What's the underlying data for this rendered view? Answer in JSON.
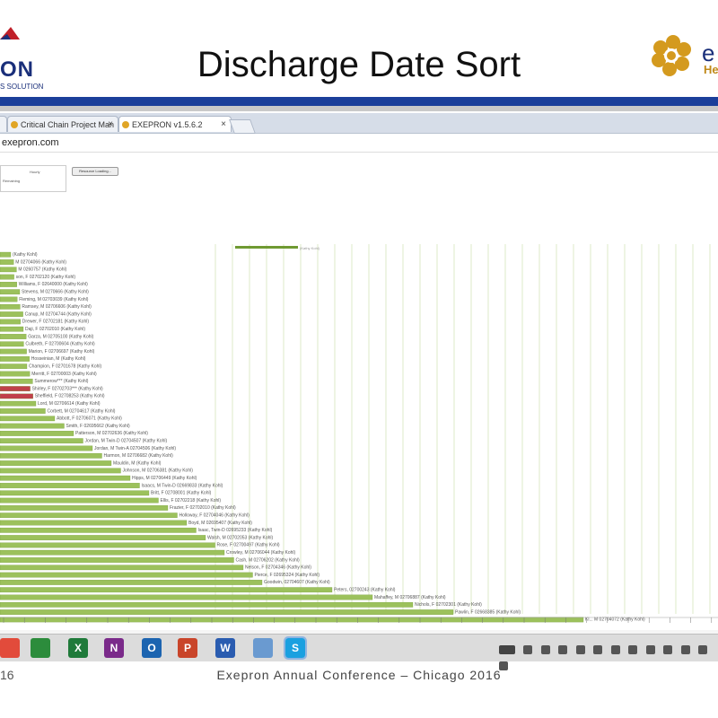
{
  "slide": {
    "title": "Discharge Date Sort",
    "logo_left_text": "ON",
    "logo_left_tagline": "S SOLUTION",
    "logo_right_text": "e",
    "logo_right_sub": "Hea",
    "footer_page": "16",
    "footer": "Exepron Annual Conference – Chicago 2016"
  },
  "browser": {
    "tabs": [
      {
        "label": "Critical Chain Project Man",
        "close": "×"
      },
      {
        "label": "EXEPRON v1.5.6.2",
        "close": "×"
      }
    ],
    "url": "exepron.com"
  },
  "app": {
    "option_label": "Hourly",
    "remaining_label": "Remaining",
    "resource_button": "Resource Loading..."
  },
  "gantt": {
    "rows": [
      {
        "label": "(Kathy Kohl)"
      },
      {
        "label": "M 02704066 (Kathy Kohl)"
      },
      {
        "label": "M 0260757 (Kathy Kohl)"
      },
      {
        "label": "son, F 02702120 (Kathy Kohl)"
      },
      {
        "label": "Williams, F 02640000 (Kathy Kohl)"
      },
      {
        "label": "Stevens, M 0270666 (Kathy Kohl)"
      },
      {
        "label": "Fleming, M 02703039 (Kathy Kohl)"
      },
      {
        "label": "Ramsey, M 02706606 (Kathy Kohl)"
      },
      {
        "label": "Canup, M 02704744 (Kathy Kohl)"
      },
      {
        "label": "Drewer, F 02702181 (Kathy Kohl)"
      },
      {
        "label": "Daji, F 02702010 (Kathy Kohl)"
      },
      {
        "label": "Garza, M 02705100 (Kathy Kohl)"
      },
      {
        "label": "Culbreth, F 02700604 (Kathy Kohl)"
      },
      {
        "label": "Marion, F 02706697 (Kathy Kohl)"
      },
      {
        "label": "Hosseinian, M (Kathy Kohl)"
      },
      {
        "label": "Champion, F 02701678 (Kathy Kohl)"
      },
      {
        "label": "Merritt, F 02700003 (Kathy Kohl)"
      },
      {
        "label": "Summerow*** (Kathy Kohl)"
      },
      {
        "label": "Shirley, F 02702703*** (Kathy Kohl)"
      },
      {
        "label": "Sheffield, F 02708253 (Kathy Kohl)"
      },
      {
        "label": "Lord, M 02706614 (Kathy Kohl)"
      },
      {
        "label": "Corbett, M 02704617 (Kathy Kohl)"
      },
      {
        "label": "Abbott, F 02706071 (Kathy Kohl)"
      },
      {
        "label": "Smith, F 02695662 (Kathy Kohl)"
      },
      {
        "label": "Patterson, M 02702636 (Kathy Kohl)"
      },
      {
        "label": "Jordan, M Twin-D 02704507 (Kathy Kohl)"
      },
      {
        "label": "Jordan, M Twin-A 02704506 (Kathy Kohl)"
      },
      {
        "label": "Harmon, M 02706682 (Kathy Kohl)"
      },
      {
        "label": "Mauldin, M (Kathy Kohl)"
      },
      {
        "label": "Johnson, M 02706381 (Kathy Kohl)"
      },
      {
        "label": "Hipps, M 02706449 (Kathy Kohl)"
      },
      {
        "label": "Isaacs, M Twin-D 02669833 (Kathy Kohl)"
      },
      {
        "label": "Britt, F 02708001 (Kathy Kohl)"
      },
      {
        "label": "Ellis, F 02702218 (Kathy Kohl)"
      },
      {
        "label": "Frazier, F 02702010 (Kathy Kohl)"
      },
      {
        "label": "Holloway, F 02704046 (Kathy Kohl)"
      },
      {
        "label": "Boyd, M 02695407 (Kathy Kohl)"
      },
      {
        "label": "Isaac, Twin-D 02695233 (Kathy Kohl)"
      },
      {
        "label": "Walsh, M 02702053 (Kathy Kohl)"
      },
      {
        "label": "Rose, F 02700497 (Kathy Kohl)"
      },
      {
        "label": "Crowley, M 02706044 (Kathy Kohl)"
      },
      {
        "label": "Cash, M 02706202 (Kathy Kohl)"
      },
      {
        "label": "Nelson, F 02704346 (Kathy Kohl)"
      },
      {
        "label": "Pierce, F 02695324 (Kathy Kohl)"
      },
      {
        "label": "Goodwin, 02704607 (Kathy Kohl)"
      },
      {
        "label": "Peters, 02700243 (Kathy Kohl)"
      },
      {
        "label": "Mahaffey, M 02706887 (Kathy Kohl)"
      },
      {
        "label": "Nichols, F 02702301 (Kathy Kohl)"
      },
      {
        "label": "Pawlin, F 02668385 (Kathy Kohl)"
      },
      {
        "label": "Kl... M 02704072 (Kathy Kohl)"
      }
    ],
    "top_row_label": "(Kathy Kohl)",
    "bar_color": "#9cc15c",
    "bar_color_dark": "#6f9a32",
    "highlight_color": "#c0404a"
  },
  "taskbar": {
    "apps": [
      {
        "name": "chrome-icon",
        "glyph": "",
        "color": "#e24b3b"
      },
      {
        "name": "project-icon",
        "glyph": "",
        "color": "#2c8c3c"
      },
      {
        "name": "excel-icon",
        "glyph": "X",
        "color": "#1f7a3a"
      },
      {
        "name": "onenote-icon",
        "glyph": "N",
        "color": "#7a2a8a"
      },
      {
        "name": "outlook-icon",
        "glyph": "O",
        "color": "#1c64b0"
      },
      {
        "name": "powerpoint-icon",
        "glyph": "P",
        "color": "#c9452a"
      },
      {
        "name": "word-icon",
        "glyph": "W",
        "color": "#2a5cb0"
      },
      {
        "name": "network-icon",
        "glyph": "",
        "color": "#6a9ad0"
      },
      {
        "name": "skype-icon",
        "glyph": "S",
        "color": "#1aa0e0"
      }
    ]
  }
}
